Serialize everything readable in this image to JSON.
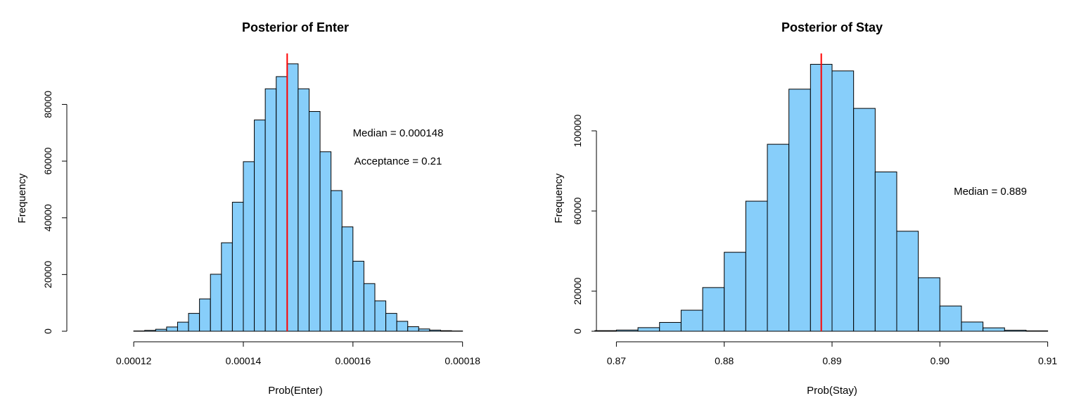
{
  "chart_data": [
    {
      "type": "bar",
      "title": "Posterior of Enter",
      "xlabel": "Prob(Enter)",
      "ylabel": "Frequency",
      "xlim": [
        0.000111,
        0.000188
      ],
      "ylim": [
        0,
        94000
      ],
      "x_ticks": [
        0.00012,
        0.00014,
        0.00016,
        0.00018
      ],
      "x_tick_labels": [
        "0.00012",
        "0.00014",
        "0.00016",
        "0.00018"
      ],
      "y_ticks": [
        0,
        20000,
        40000,
        60000,
        80000
      ],
      "y_tick_labels": [
        "0",
        "20000",
        "40000",
        "60000",
        "80000"
      ],
      "bin_width": 2e-06,
      "bins": [
        {
          "x0": 0.00011,
          "value": 0
        },
        {
          "x0": 0.000112,
          "value": 0
        },
        {
          "x0": 0.000114,
          "value": 0
        },
        {
          "x0": 0.000116,
          "value": 0
        },
        {
          "x0": 0.000118,
          "value": 0
        },
        {
          "x0": 0.00012,
          "value": 100
        },
        {
          "x0": 0.000122,
          "value": 300
        },
        {
          "x0": 0.000124,
          "value": 700
        },
        {
          "x0": 0.000126,
          "value": 1500
        },
        {
          "x0": 0.000128,
          "value": 3200
        },
        {
          "x0": 0.00013,
          "value": 6300
        },
        {
          "x0": 0.000132,
          "value": 11400
        },
        {
          "x0": 0.000134,
          "value": 20100
        },
        {
          "x0": 0.000136,
          "value": 31200
        },
        {
          "x0": 0.000138,
          "value": 45500
        },
        {
          "x0": 0.00014,
          "value": 59800
        },
        {
          "x0": 0.000142,
          "value": 74500
        },
        {
          "x0": 0.000144,
          "value": 85500
        },
        {
          "x0": 0.000146,
          "value": 89800
        },
        {
          "x0": 0.000148,
          "value": 94300
        },
        {
          "x0": 0.00015,
          "value": 85500
        },
        {
          "x0": 0.000152,
          "value": 77500
        },
        {
          "x0": 0.000154,
          "value": 63300
        },
        {
          "x0": 0.000156,
          "value": 49600
        },
        {
          "x0": 0.000158,
          "value": 36800
        },
        {
          "x0": 0.00016,
          "value": 24700
        },
        {
          "x0": 0.000162,
          "value": 16800
        },
        {
          "x0": 0.000164,
          "value": 10700
        },
        {
          "x0": 0.000166,
          "value": 6300
        },
        {
          "x0": 0.000168,
          "value": 3500
        },
        {
          "x0": 0.00017,
          "value": 1600
        },
        {
          "x0": 0.000172,
          "value": 800
        },
        {
          "x0": 0.000174,
          "value": 400
        },
        {
          "x0": 0.000176,
          "value": 200
        },
        {
          "x0": 0.000178,
          "value": 100
        },
        {
          "x0": 0.00018,
          "value": 0
        },
        {
          "x0": 0.000182,
          "value": 0
        },
        {
          "x0": 0.000184,
          "value": 0
        },
        {
          "x0": 0.000186,
          "value": 0
        }
      ],
      "median_line": 0.000148,
      "annotations": [
        "Median = 0.000148",
        "Acceptance = 0.21"
      ],
      "bar_color": "#87CEFA",
      "bar_edge_color": "#000000",
      "line_color": "#FF0000",
      "grid": false
    },
    {
      "type": "bar",
      "title": "Posterior of Stay",
      "xlabel": "Prob(Stay)",
      "ylabel": "Frequency",
      "xlim": [
        0.8688,
        0.9112
      ],
      "ylim": [
        0,
        133000
      ],
      "x_ticks": [
        0.87,
        0.88,
        0.89,
        0.9,
        0.91
      ],
      "x_tick_labels": [
        "0.87",
        "0.88",
        "0.89",
        "0.90",
        "0.91"
      ],
      "y_ticks": [
        0,
        20000,
        60000,
        100000
      ],
      "y_tick_labels": [
        "0",
        "20000",
        "60000",
        "100000"
      ],
      "bin_width": 0.002,
      "bins": [
        {
          "x0": 0.868,
          "value": 300
        },
        {
          "x0": 0.87,
          "value": 600
        },
        {
          "x0": 0.872,
          "value": 1800
        },
        {
          "x0": 0.874,
          "value": 4400
        },
        {
          "x0": 0.876,
          "value": 10500
        },
        {
          "x0": 0.878,
          "value": 21800
        },
        {
          "x0": 0.88,
          "value": 39400
        },
        {
          "x0": 0.882,
          "value": 64900
        },
        {
          "x0": 0.884,
          "value": 93300
        },
        {
          "x0": 0.886,
          "value": 120800
        },
        {
          "x0": 0.888,
          "value": 133200
        },
        {
          "x0": 0.89,
          "value": 129900
        },
        {
          "x0": 0.892,
          "value": 111200
        },
        {
          "x0": 0.894,
          "value": 79500
        },
        {
          "x0": 0.896,
          "value": 49900
        },
        {
          "x0": 0.898,
          "value": 26700
        },
        {
          "x0": 0.9,
          "value": 12600
        },
        {
          "x0": 0.902,
          "value": 4600
        },
        {
          "x0": 0.904,
          "value": 1700
        },
        {
          "x0": 0.906,
          "value": 500
        },
        {
          "x0": 0.908,
          "value": 200
        },
        {
          "x0": 0.91,
          "value": 0
        }
      ],
      "median_line": 0.889,
      "annotations": [
        "Median = 0.889"
      ],
      "bar_color": "#87CEFA",
      "bar_edge_color": "#000000",
      "line_color": "#FF0000",
      "grid": false
    }
  ]
}
